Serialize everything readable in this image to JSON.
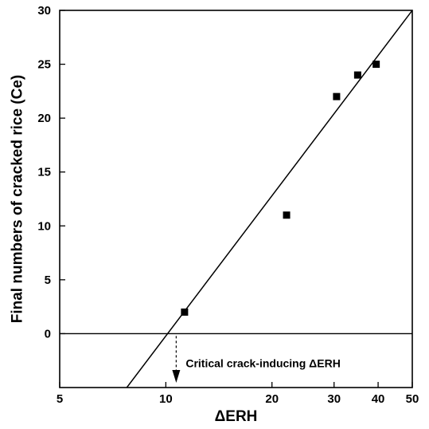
{
  "chart_data": {
    "type": "scatter",
    "xlabel": "ΔERH",
    "ylabel": "Final numbers of cracked rice (Ce)",
    "x_scale": "log",
    "xlim": [
      5,
      50
    ],
    "ylim": [
      -5,
      30
    ],
    "x_ticks": [
      {
        "value": 5,
        "label": "5"
      },
      {
        "value": 10,
        "label": "10"
      },
      {
        "value": 20,
        "label": "20"
      },
      {
        "value": 30,
        "label": "30"
      },
      {
        "value": 40,
        "label": "40"
      },
      {
        "value": 50,
        "label": "50"
      }
    ],
    "y_ticks": [
      {
        "value": 0,
        "label": "0"
      },
      {
        "value": 5,
        "label": "5"
      },
      {
        "value": 10,
        "label": "10"
      },
      {
        "value": 15,
        "label": "15"
      },
      {
        "value": 20,
        "label": "20"
      },
      {
        "value": 25,
        "label": "25"
      },
      {
        "value": 30,
        "label": "30"
      }
    ],
    "points": [
      {
        "x": 11.3,
        "y": 2
      },
      {
        "x": 22,
        "y": 11
      },
      {
        "x": 30.5,
        "y": 22
      },
      {
        "x": 35,
        "y": 24
      },
      {
        "x": 39.5,
        "y": 25
      }
    ],
    "fit_line": {
      "x": [
        7.75,
        50
      ],
      "y": [
        -5,
        30
      ]
    },
    "reference_line_y": 0,
    "annotation": {
      "text": "Critical crack-inducing ΔERH",
      "x": 10.7
    },
    "grid": false
  }
}
